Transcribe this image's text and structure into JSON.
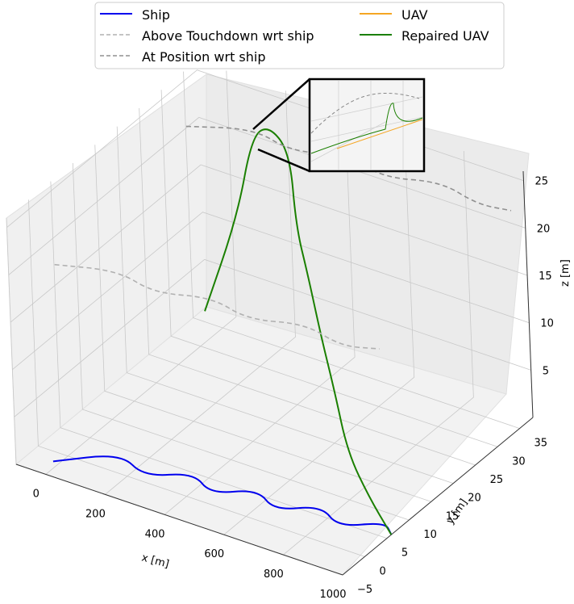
{
  "chart_data": {
    "type": "line",
    "projection": "3d",
    "xlabel": "x [m]",
    "ylabel": "y [m]",
    "zlabel": "z [m]",
    "x_ticks": [
      "0",
      "200",
      "400",
      "600",
      "800",
      "1000"
    ],
    "y_ticks": [
      "−5",
      "0",
      "5",
      "10",
      "15",
      "20",
      "25",
      "30",
      "35"
    ],
    "z_ticks": [
      "5",
      "10",
      "15",
      "20",
      "25"
    ],
    "xlim": [
      -100,
      1000
    ],
    "ylim": [
      -5,
      38
    ],
    "zlim": [
      0,
      26
    ],
    "grid": true,
    "legend_position": "top-center",
    "legend": [
      {
        "label": "Ship",
        "color": "#0000ee",
        "style": "solid"
      },
      {
        "label": "UAV",
        "color": "#f5a623",
        "style": "solid"
      },
      {
        "label": "Above Touchdown wrt ship",
        "color": "#b0b0b0",
        "style": "dashed"
      },
      {
        "label": "Repaired UAV",
        "color": "#1a7f00",
        "style": "solid"
      },
      {
        "label": "At Position wrt ship",
        "color": "#909090",
        "style": "dashed"
      }
    ],
    "series": [
      {
        "name": "Ship",
        "color": "#0000ee",
        "z": 0,
        "x": [
          -20,
          120,
          240,
          350,
          450,
          550,
          650,
          750,
          850,
          950,
          1000
        ],
        "y": [
          -2,
          4,
          1,
          5,
          2,
          6,
          3,
          7,
          4,
          8,
          6
        ]
      },
      {
        "name": "Repaired UAV",
        "color": "#1a7f00",
        "x": [
          50,
          80,
          140,
          230,
          330,
          420,
          500,
          600,
          700,
          800,
          900,
          1000
        ],
        "y": [
          28,
          34,
          34,
          32,
          30,
          25,
          22,
          18,
          14,
          10,
          8,
          6
        ],
        "z": [
          5,
          13,
          22,
          25,
          24,
          19,
          16,
          12,
          9,
          5,
          2,
          0
        ]
      },
      {
        "name": "Above Touchdown wrt ship",
        "color": "#b0b0b0",
        "z": 20,
        "x": [
          -20,
          150,
          300,
          450,
          600,
          750,
          900,
          1000
        ],
        "y": [
          0,
          3,
          1,
          4,
          2,
          5,
          3,
          5
        ]
      },
      {
        "name": "At Position wrt ship",
        "color": "#909090",
        "z": 23,
        "x": [
          -20,
          150,
          300,
          450,
          600,
          750,
          900,
          1000
        ],
        "y": [
          30,
          34,
          32,
          35,
          33,
          36,
          34,
          35
        ]
      }
    ]
  }
}
